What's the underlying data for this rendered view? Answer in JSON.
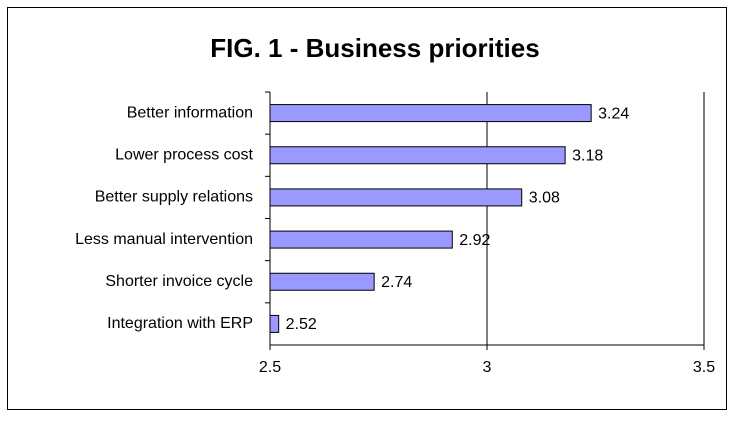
{
  "chart_data": {
    "type": "bar",
    "orientation": "horizontal",
    "title": "FIG. 1 - Business priorities",
    "categories": [
      "Better information",
      "Lower process cost",
      "Better supply relations",
      "Less manual intervention",
      "Shorter invoice cycle",
      "Integration with ERP"
    ],
    "values": [
      3.24,
      3.18,
      3.08,
      2.92,
      2.74,
      2.52
    ],
    "color": "#9999ff",
    "xlim": [
      2.5,
      3.5
    ],
    "xticks": [
      2.5,
      3,
      3.5
    ],
    "grid": true
  }
}
